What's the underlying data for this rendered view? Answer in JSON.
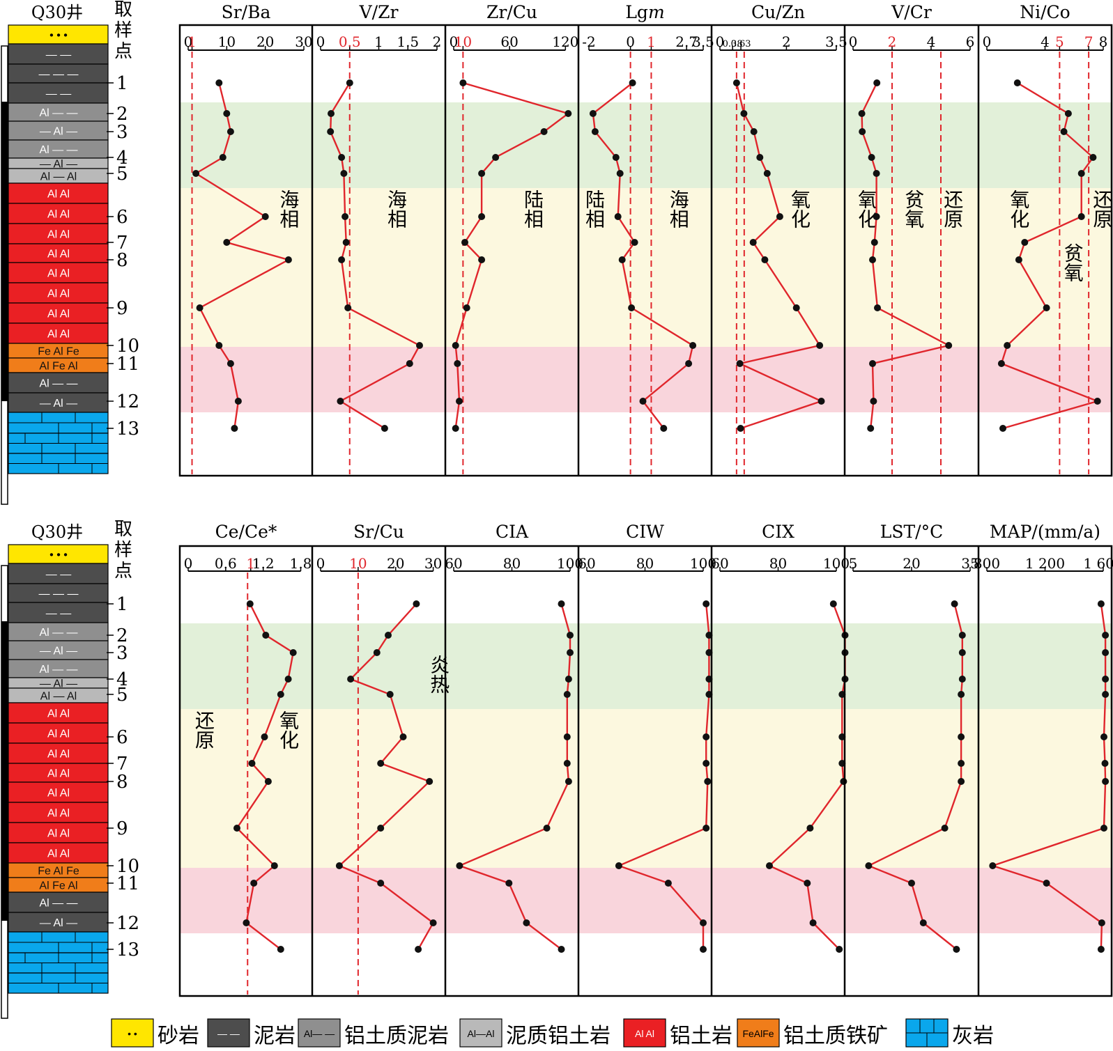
{
  "well_label": "Q30井",
  "sample_axis_label": [
    "取",
    "样",
    "点"
  ],
  "sample_labels": [
    "1",
    "2",
    "3",
    "4",
    "5",
    "6",
    "7",
    "8",
    "9",
    "10",
    "11",
    "12",
    "13"
  ],
  "zone_colors": {
    "green": "#e2f0d9",
    "yellow": "#fcf8df",
    "pink": "#f9d5dc"
  },
  "series_color": "#e0262c",
  "marker_color": "#111111",
  "lithology_colors": {
    "sandstone": "#ffe600",
    "mudstone": "#4d4d4d",
    "bauxitic_mudstone": "#8f8f8f",
    "argillaceous_bauxite": "#b9b9b9",
    "bauxite": "#ea2024",
    "bauxitic_iron_ore": "#f07d1a",
    "limestone": "#0aa7ec"
  },
  "lithology_column": [
    {
      "type": "sandstone",
      "text": "•  •  •"
    },
    {
      "type": "mudstone",
      "text": "—   —"
    },
    {
      "type": "mudstone",
      "text": "—  —  —"
    },
    {
      "type": "mudstone",
      "text": "—   —"
    },
    {
      "type": "bauxitic_mudstone",
      "text": "Al  —  —"
    },
    {
      "type": "bauxitic_mudstone",
      "text": "—  Al  —"
    },
    {
      "type": "bauxitic_mudstone",
      "text": "Al  —  —"
    },
    {
      "type": "argillaceous_bauxite",
      "text": "—  Al  —"
    },
    {
      "type": "argillaceous_bauxite",
      "text": "Al  —  Al"
    },
    {
      "type": "bauxite",
      "text": "Al     Al"
    },
    {
      "type": "bauxite",
      "text": "Al   Al"
    },
    {
      "type": "bauxite",
      "text": "Al     Al"
    },
    {
      "type": "bauxite",
      "text": "Al   Al"
    },
    {
      "type": "bauxite",
      "text": "Al     Al"
    },
    {
      "type": "bauxite",
      "text": "Al   Al"
    },
    {
      "type": "bauxite",
      "text": "Al     Al"
    },
    {
      "type": "bauxite",
      "text": "Al   Al"
    },
    {
      "type": "bauxitic_iron_ore",
      "text": "Fe  Al  Fe"
    },
    {
      "type": "bauxitic_iron_ore",
      "text": "Al  Fe  Al"
    },
    {
      "type": "mudstone",
      "text": "Al  —  —"
    },
    {
      "type": "mudstone",
      "text": "—  Al  —"
    },
    {
      "type": "limestone",
      "text": ""
    },
    {
      "type": "limestone",
      "text": ""
    },
    {
      "type": "limestone",
      "text": ""
    }
  ],
  "legend": [
    {
      "type": "sandstone",
      "swatch": "•  •",
      "label": "砂岩"
    },
    {
      "type": "mudstone",
      "swatch": "— —",
      "label": "泥岩"
    },
    {
      "type": "bauxitic_mudstone",
      "swatch": "Al— —",
      "label": "铝土质泥岩"
    },
    {
      "type": "argillaceous_bauxite",
      "swatch": "Al—Al",
      "label": "泥质铝土岩"
    },
    {
      "type": "bauxite",
      "swatch": "Al  Al",
      "label": "铝土岩"
    },
    {
      "type": "bauxitic_iron_ore",
      "swatch": "FeAlFe",
      "label": "铝土质铁矿"
    },
    {
      "type": "limestone",
      "swatch": "",
      "label": "灰岩"
    }
  ],
  "chart_data": [
    {
      "type": "line",
      "title": "Sr/Ba",
      "ticks": [
        "0",
        "1",
        "10",
        "20",
        "30"
      ],
      "tick_values": [
        0,
        1,
        10,
        20,
        30
      ],
      "red_ticks": [
        "1"
      ],
      "xlim": [
        0,
        30
      ],
      "reflines": [
        1
      ],
      "y": [
        "1",
        "2",
        "3",
        "4",
        "5",
        "6",
        "7",
        "8",
        "9",
        "10",
        "11",
        "12",
        "13"
      ],
      "values": [
        8,
        10,
        11,
        9,
        2,
        20,
        10,
        26,
        3,
        8,
        11,
        13,
        12
      ],
      "annotations": [
        {
          "text": "海相",
          "x": 26
        }
      ]
    },
    {
      "type": "line",
      "title": "V/Zr",
      "ticks": [
        "0",
        "0.5",
        "1",
        "1.5",
        "2"
      ],
      "tick_values": [
        0,
        0.5,
        1,
        1.5,
        2
      ],
      "red_ticks": [
        "0.5"
      ],
      "xlim": [
        0,
        2
      ],
      "reflines": [
        0.5
      ],
      "y": [
        "1",
        "2",
        "3",
        "4",
        "5",
        "6",
        "7",
        "8",
        "9",
        "10",
        "11",
        "12",
        "13"
      ],
      "values": [
        0.5,
        0.18,
        0.17,
        0.36,
        0.4,
        0.42,
        0.44,
        0.36,
        0.47,
        1.7,
        1.53,
        0.34,
        1.1
      ],
      "annotations": [
        {
          "text": "海相",
          "x": 1.3
        }
      ]
    },
    {
      "type": "line",
      "title": "Zr/Cu",
      "ticks": [
        "0",
        "10",
        "60",
        "120"
      ],
      "tick_values": [
        0,
        10,
        60,
        120
      ],
      "red_ticks": [
        "10"
      ],
      "xlim": [
        0,
        125
      ],
      "reflines": [
        10
      ],
      "y": [
        "1",
        "2",
        "3",
        "4",
        "5",
        "6",
        "7",
        "8",
        "9",
        "10",
        "11",
        "12",
        "13"
      ],
      "values": [
        10,
        123,
        97,
        45,
        30,
        30,
        12,
        30,
        14,
        2,
        4,
        6,
        2
      ],
      "annotations": [
        {
          "text": "陆相",
          "x": 85
        }
      ]
    },
    {
      "type": "line",
      "title": "Lgm",
      "title_italic_part": "m",
      "ticks": [
        "-2",
        "0",
        "1",
        "2.7",
        "3.5"
      ],
      "tick_values": [
        -2,
        0,
        1,
        2.7,
        3.5
      ],
      "red_ticks": [
        "1"
      ],
      "xlim": [
        -2.1,
        3.5
      ],
      "reflines": [
        0,
        1
      ],
      "y": [
        "1",
        "2",
        "3",
        "4",
        "5",
        "6",
        "7",
        "8",
        "9",
        "10",
        "11",
        "12",
        "13"
      ],
      "values": [
        0.1,
        -1.8,
        -1.7,
        -0.7,
        -0.5,
        -0.6,
        0.2,
        -0.4,
        0.05,
        3.0,
        2.8,
        0.6,
        1.6
      ],
      "annotations": [
        {
          "text": "陆相",
          "x": -1.75
        },
        {
          "text": "海相",
          "x": 2.3
        }
      ]
    },
    {
      "type": "line",
      "title": "Cu/Zn",
      "ticks": [
        "0",
        "0.38",
        "0.63",
        "2",
        "3.5"
      ],
      "tick_values": [
        0,
        0.38,
        0.63,
        2,
        3.5
      ],
      "red_ticks": [],
      "xlim": [
        0,
        3.5
      ],
      "reflines": [
        0.5,
        0.73
      ],
      "y": [
        "1",
        "2",
        "3",
        "4",
        "5",
        "6",
        "7",
        "8",
        "9",
        "10",
        "11",
        "12",
        "13"
      ],
      "values": [
        0.5,
        0.72,
        1.02,
        1.2,
        1.42,
        1.8,
        1.0,
        1.35,
        2.3,
        3.0,
        0.6,
        3.05,
        0.62
      ],
      "annotations": [
        {
          "text": "氧化",
          "x": 2.4
        }
      ]
    },
    {
      "type": "line",
      "title": "V/Cr",
      "ticks": [
        "0",
        "2",
        "4",
        "6"
      ],
      "tick_values": [
        0,
        2,
        4,
        6
      ],
      "red_ticks": [
        "2"
      ],
      "xlim": [
        0,
        6
      ],
      "reflines": [
        2,
        4.5
      ],
      "y": [
        "1",
        "2",
        "3",
        "4",
        "5",
        "6",
        "7",
        "8",
        "9",
        "10",
        "11",
        "12",
        "13"
      ],
      "values": [
        1.22,
        0.45,
        0.47,
        0.95,
        1.2,
        1.2,
        1.1,
        1.0,
        1.25,
        4.9,
        1.0,
        1.05,
        0.9
      ],
      "annotations": [
        {
          "text": "氧化",
          "x": 0.7
        },
        {
          "text": "贫氧",
          "x": 3.1
        },
        {
          "text": "还原",
          "x": 5.1
        }
      ]
    },
    {
      "type": "line",
      "title": "Ni/Co",
      "ticks": [
        "0",
        "4",
        "5",
        "7",
        "8"
      ],
      "tick_values": [
        0,
        4,
        5,
        7,
        8
      ],
      "red_ticks": [
        "5",
        "7"
      ],
      "xlim": [
        0,
        8
      ],
      "reflines": [
        5,
        7
      ],
      "y": [
        "1",
        "2",
        "3",
        "4",
        "5",
        "6",
        "7",
        "8",
        "9",
        "10",
        "11",
        "12",
        "13"
      ],
      "values": [
        2.1,
        5.6,
        5.3,
        7.3,
        6.5,
        6.5,
        2.6,
        2.2,
        4.1,
        1.4,
        1.0,
        7.6,
        1.1
      ],
      "annotations": [
        {
          "text": "氧化",
          "x": 2.2
        },
        {
          "text": "还原",
          "x": 7.9
        },
        {
          "text": "贫氧",
          "x": 5.9
        }
      ]
    },
    {
      "type": "line",
      "title": "Ce/Ce*",
      "ticks": [
        "0",
        "0.6",
        "1",
        "1.2",
        "1.8"
      ],
      "tick_values": [
        0,
        0.6,
        1,
        1.2,
        1.8
      ],
      "red_ticks": [
        "1"
      ],
      "xlim": [
        0,
        1.85
      ],
      "reflines": [
        0.95
      ],
      "y": [
        "1",
        "2",
        "3",
        "4",
        "5",
        "6",
        "7",
        "8",
        "9",
        "10",
        "11",
        "12",
        "13"
      ],
      "values": [
        0.99,
        1.24,
        1.68,
        1.6,
        1.48,
        1.22,
        1.02,
        1.28,
        0.78,
        1.38,
        1.05,
        0.93,
        1.48
      ],
      "annotations": [
        {
          "text": "还原",
          "x": 0.25
        },
        {
          "text": "氧化",
          "x": 1.6
        }
      ]
    },
    {
      "type": "line",
      "title": "Sr/Cu",
      "ticks": [
        "0",
        "10",
        "20",
        "30"
      ],
      "tick_values": [
        0,
        10,
        20,
        30
      ],
      "red_ticks": [
        "10"
      ],
      "xlim": [
        0,
        31
      ],
      "reflines": [
        10
      ],
      "y": [
        "1",
        "2",
        "3",
        "4",
        "5",
        "6",
        "7",
        "8",
        "9",
        "10",
        "11",
        "12",
        "13"
      ],
      "values": [
        25.5,
        18,
        15,
        8,
        18.5,
        22,
        16,
        29,
        16,
        5,
        16,
        30,
        26
      ],
      "annotations": [
        {
          "text": "炎热",
          "x": 31.5
        }
      ]
    },
    {
      "type": "line",
      "title": "CIA",
      "ticks": [
        "60",
        "80",
        "100"
      ],
      "tick_values": [
        60,
        80,
        100
      ],
      "red_ticks": [],
      "xlim": [
        60,
        100
      ],
      "reflines": [],
      "y": [
        "1",
        "2",
        "3",
        "4",
        "5",
        "6",
        "7",
        "8",
        "9",
        "10",
        "11",
        "12",
        "13"
      ],
      "values": [
        97,
        100,
        100,
        99.5,
        99,
        99,
        99,
        99.5,
        92,
        62,
        79,
        85,
        97
      ],
      "annotations": []
    },
    {
      "type": "line",
      "title": "CIW",
      "ticks": [
        "60",
        "80",
        "100"
      ],
      "tick_values": [
        60,
        80,
        100
      ],
      "red_ticks": [],
      "xlim": [
        60,
        100
      ],
      "reflines": [],
      "y": [
        "1",
        "2",
        "3",
        "4",
        "5",
        "6",
        "7",
        "8",
        "9",
        "10",
        "11",
        "12",
        "13"
      ],
      "values": [
        101,
        102,
        102,
        102,
        102,
        101,
        101,
        101.5,
        101,
        71,
        88,
        100,
        100
      ],
      "annotations": []
    },
    {
      "type": "line",
      "title": "CIX",
      "ticks": [
        "60",
        "80",
        "100"
      ],
      "tick_values": [
        60,
        80,
        100
      ],
      "red_ticks": [],
      "xlim": [
        60,
        100
      ],
      "reflines": [],
      "y": [
        "1",
        "2",
        "3",
        "4",
        "5",
        "6",
        "7",
        "8",
        "9",
        "10",
        "11",
        "12",
        "13"
      ],
      "values": [
        99,
        103,
        103,
        103,
        102,
        102,
        102,
        102.5,
        91,
        77,
        90,
        92,
        101
      ],
      "annotations": []
    },
    {
      "type": "line",
      "title": "LST/°C",
      "ticks": [
        "5",
        "20",
        "35"
      ],
      "tick_values": [
        5,
        20,
        35
      ],
      "red_ticks": [],
      "xlim": [
        5,
        35
      ],
      "reflines": [],
      "y": [
        "1",
        "2",
        "3",
        "4",
        "5",
        "6",
        "7",
        "8",
        "9",
        "10",
        "11",
        "12",
        "13"
      ],
      "values": [
        31,
        33,
        33,
        33,
        32.7,
        32.7,
        32.7,
        32.7,
        28.5,
        9,
        20,
        23,
        31.5
      ],
      "annotations": []
    },
    {
      "type": "line",
      "title": "MAP/(mm/a)",
      "ticks": [
        "800",
        "1 200",
        "1 600"
      ],
      "tick_values": [
        800,
        1200,
        1600
      ],
      "red_ticks": [],
      "xlim": [
        800,
        1600
      ],
      "reflines": [],
      "y": [
        "1",
        "2",
        "3",
        "4",
        "5",
        "6",
        "7",
        "8",
        "9",
        "10",
        "11",
        "12",
        "13"
      ],
      "values": [
        1585,
        1615,
        1615,
        1615,
        1615,
        1605,
        1612,
        1615,
        1605,
        840,
        1210,
        1590,
        1585
      ],
      "annotations": []
    }
  ]
}
